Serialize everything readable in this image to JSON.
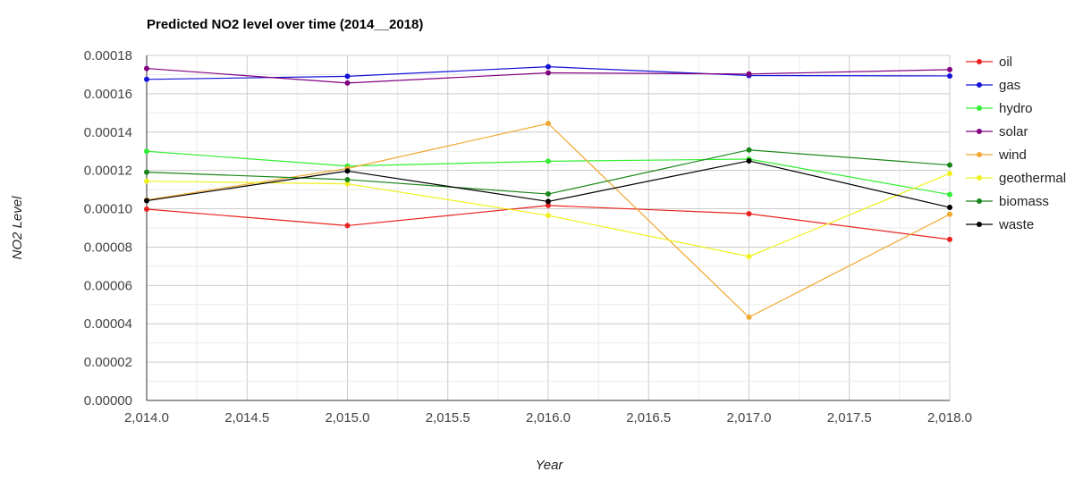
{
  "chart_data": {
    "type": "line",
    "title": "Predicted NO2 level over time (2014__2018)",
    "xlabel": "Year",
    "ylabel": "NO2 Level",
    "x": [
      2014,
      2015,
      2016,
      2017,
      2018
    ],
    "xlim": [
      2014,
      2018
    ],
    "ylim": [
      0,
      0.00018
    ],
    "x_ticks": [
      "2,014.0",
      "2,014.5",
      "2,015.0",
      "2,015.5",
      "2,016.0",
      "2,016.5",
      "2,017.0",
      "2,017.5",
      "2,018.0"
    ],
    "y_ticks": [
      "0.00000",
      "0.00002",
      "0.00004",
      "0.00006",
      "0.00008",
      "0.00010",
      "0.00012",
      "0.00014",
      "0.00016",
      "0.00018"
    ],
    "grid": true,
    "legend_position": "right",
    "series": [
      {
        "name": "oil",
        "color": "#e8221e",
        "values": [
          9.98e-05,
          9.12e-05,
          0.0001017,
          9.74e-05,
          8.4e-05
        ]
      },
      {
        "name": "gas",
        "color": "#1212d8",
        "values": [
          0.0001675,
          0.0001691,
          0.0001741,
          0.0001695,
          0.0001693
        ]
      },
      {
        "name": "hydro",
        "color": "#33ee33",
        "values": [
          0.00013,
          0.0001223,
          0.0001248,
          0.0001259,
          0.0001074
        ]
      },
      {
        "name": "solar",
        "color": "#800080",
        "values": [
          0.0001732,
          0.0001656,
          0.0001709,
          0.0001703,
          0.0001726
        ]
      },
      {
        "name": "wind",
        "color": "#f0a830",
        "values": [
          0.0001046,
          0.000121,
          0.0001445,
          4.34e-05,
          9.71e-05
        ]
      },
      {
        "name": "geothermal",
        "color": "#f0f020",
        "values": [
          0.0001144,
          0.000113,
          9.65e-05,
          7.51e-05,
          0.0001184
        ]
      },
      {
        "name": "biomass",
        "color": "#1a861a",
        "values": [
          0.0001191,
          0.0001152,
          0.0001077,
          0.0001307,
          0.0001228
        ]
      },
      {
        "name": "waste",
        "color": "#000000",
        "values": [
          0.0001042,
          0.0001197,
          0.0001038,
          0.000125,
          0.0001007
        ]
      }
    ]
  }
}
